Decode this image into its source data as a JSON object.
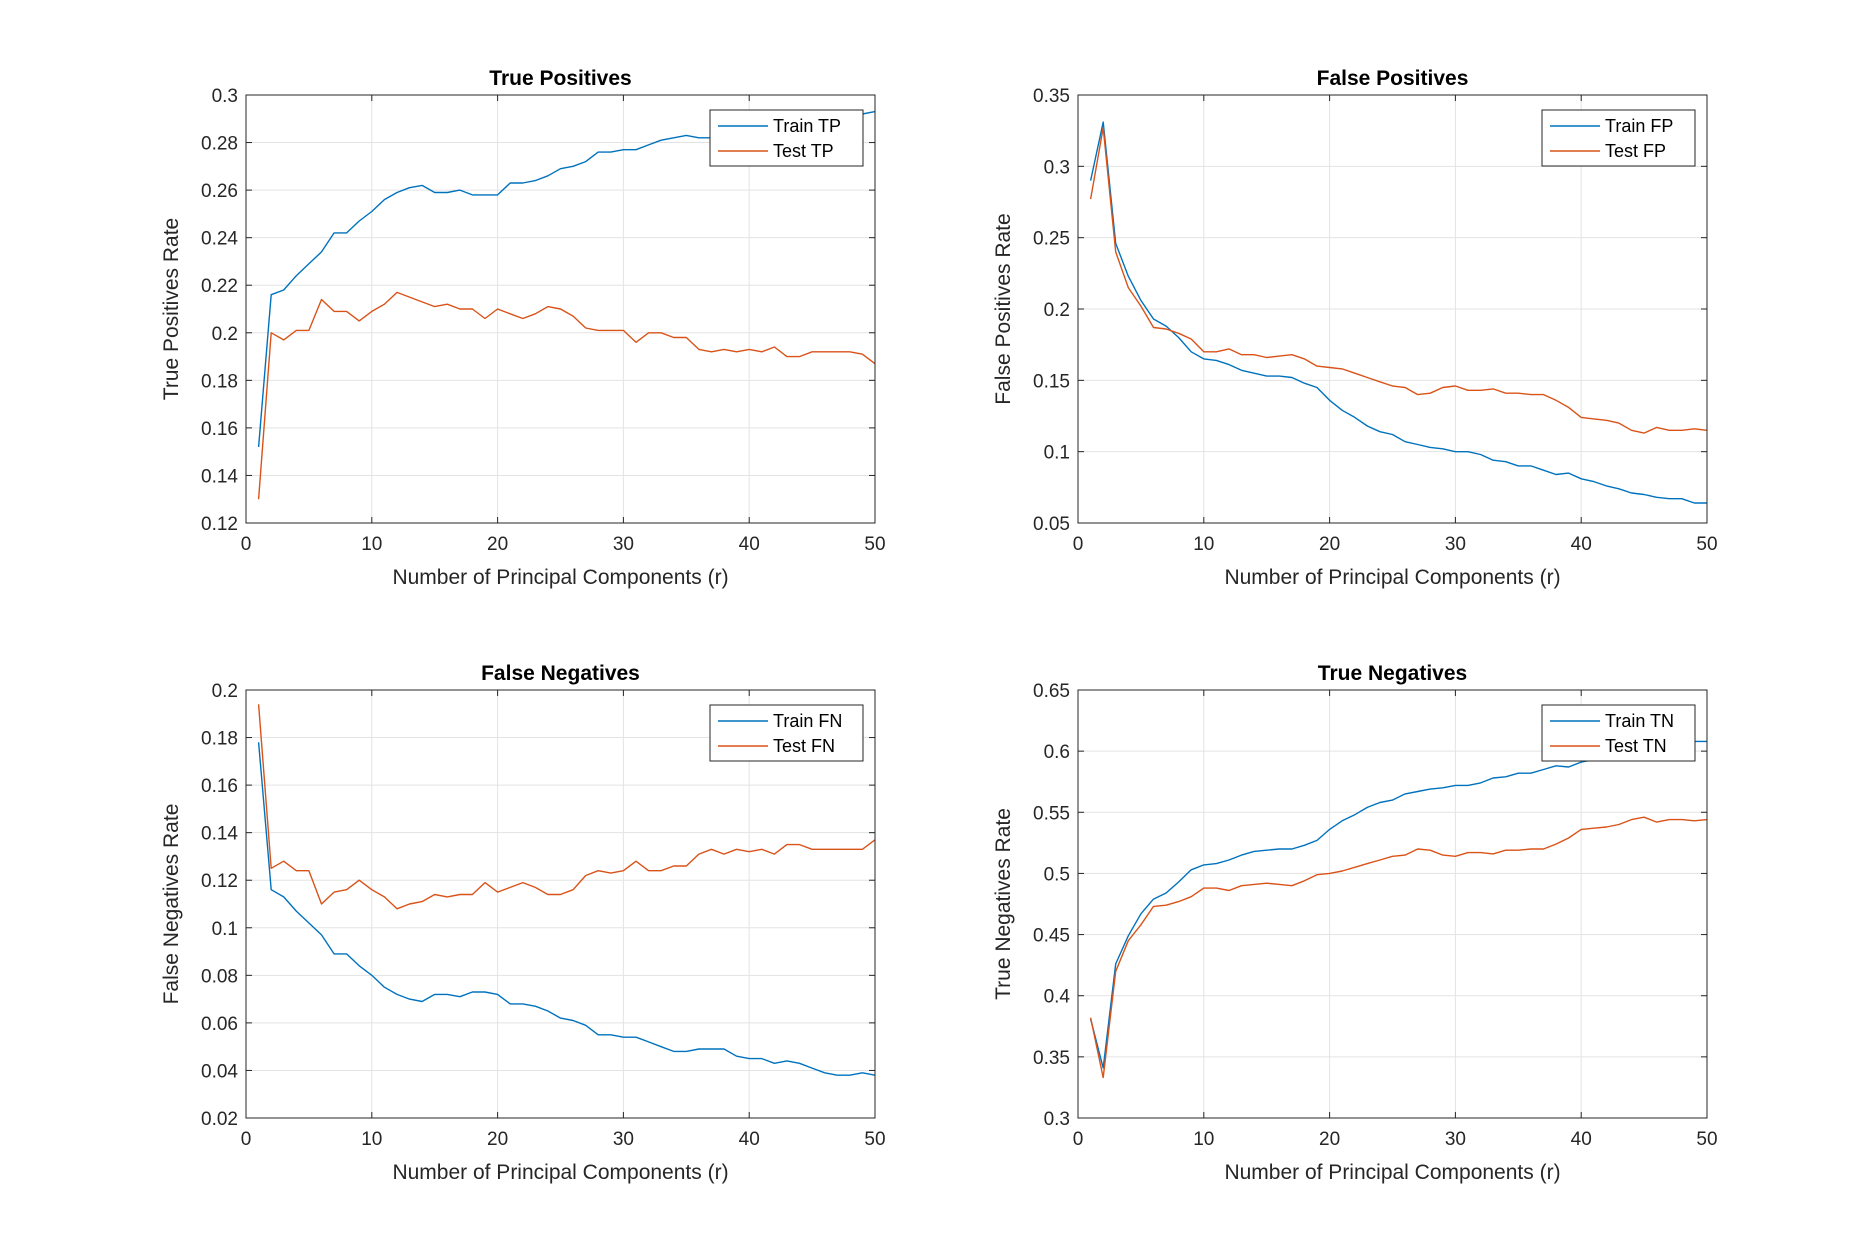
{
  "colors": {
    "train": "#0072bd",
    "test": "#d95319",
    "grid": "#e3e3e3",
    "axes": "#262626"
  },
  "chart_data": [
    {
      "type": "line",
      "title": "True Positives",
      "xlabel": "Number of Principal Components (r)",
      "ylabel": "True Positives Rate",
      "xlim": [
        0,
        50
      ],
      "ylim": [
        0.12,
        0.3
      ],
      "xticks": [
        "0",
        "10",
        "20",
        "30",
        "40",
        "50"
      ],
      "yticks": [
        "0.12",
        "0.14",
        "0.16",
        "0.18",
        "0.2",
        "0.22",
        "0.24",
        "0.26",
        "0.28",
        "0.3"
      ],
      "grid": true,
      "legend_position": "top-right",
      "x": [
        1,
        2,
        3,
        4,
        5,
        6,
        7,
        8,
        9,
        10,
        11,
        12,
        13,
        14,
        15,
        16,
        17,
        18,
        19,
        20,
        21,
        22,
        23,
        24,
        25,
        26,
        27,
        28,
        29,
        30,
        31,
        32,
        33,
        34,
        35,
        36,
        37,
        38,
        39,
        40,
        41,
        42,
        43,
        44,
        45,
        46,
        47,
        48,
        49,
        50
      ],
      "series": [
        {
          "name": "Train TP",
          "color_key": "train",
          "values": [
            0.152,
            0.216,
            0.218,
            0.224,
            0.229,
            0.234,
            0.242,
            0.242,
            0.247,
            0.251,
            0.256,
            0.259,
            0.261,
            0.262,
            0.259,
            0.259,
            0.26,
            0.258,
            0.258,
            0.258,
            0.263,
            0.263,
            0.264,
            0.266,
            0.269,
            0.27,
            0.272,
            0.276,
            0.276,
            0.277,
            0.277,
            0.279,
            0.281,
            0.282,
            0.283,
            0.282,
            0.282,
            0.284,
            0.285,
            0.286,
            0.287,
            0.288,
            0.288,
            0.289,
            0.29,
            0.291,
            0.291,
            0.292,
            0.292,
            0.293
          ]
        },
        {
          "name": "Test TP",
          "color_key": "test",
          "values": [
            0.13,
            0.2,
            0.197,
            0.201,
            0.201,
            0.214,
            0.209,
            0.209,
            0.205,
            0.209,
            0.212,
            0.217,
            0.215,
            0.213,
            0.211,
            0.212,
            0.21,
            0.21,
            0.206,
            0.21,
            0.208,
            0.206,
            0.208,
            0.211,
            0.21,
            0.207,
            0.202,
            0.201,
            0.201,
            0.201,
            0.196,
            0.2,
            0.2,
            0.198,
            0.198,
            0.193,
            0.192,
            0.193,
            0.192,
            0.193,
            0.192,
            0.194,
            0.19,
            0.19,
            0.192,
            0.192,
            0.192,
            0.192,
            0.191,
            0.187
          ]
        }
      ]
    },
    {
      "type": "line",
      "title": "False Positives",
      "xlabel": "Number of Principal Components (r)",
      "ylabel": "False Positives Rate",
      "xlim": [
        0,
        50
      ],
      "ylim": [
        0.05,
        0.35
      ],
      "xticks": [
        "0",
        "10",
        "20",
        "30",
        "40",
        "50"
      ],
      "yticks": [
        "0.05",
        "0.1",
        "0.15",
        "0.2",
        "0.25",
        "0.3",
        "0.35"
      ],
      "grid": true,
      "legend_position": "top-right",
      "x": [
        1,
        2,
        3,
        4,
        5,
        6,
        7,
        8,
        9,
        10,
        11,
        12,
        13,
        14,
        15,
        16,
        17,
        18,
        19,
        20,
        21,
        22,
        23,
        24,
        25,
        26,
        27,
        28,
        29,
        30,
        31,
        32,
        33,
        34,
        35,
        36,
        37,
        38,
        39,
        40,
        41,
        42,
        43,
        44,
        45,
        46,
        47,
        48,
        49,
        50
      ],
      "series": [
        {
          "name": "Train FP",
          "color_key": "train",
          "values": [
            0.29,
            0.331,
            0.246,
            0.223,
            0.206,
            0.193,
            0.188,
            0.18,
            0.17,
            0.165,
            0.164,
            0.161,
            0.157,
            0.155,
            0.153,
            0.153,
            0.152,
            0.148,
            0.145,
            0.136,
            0.129,
            0.124,
            0.118,
            0.114,
            0.112,
            0.107,
            0.105,
            0.103,
            0.102,
            0.1,
            0.1,
            0.098,
            0.094,
            0.093,
            0.09,
            0.09,
            0.087,
            0.084,
            0.085,
            0.081,
            0.079,
            0.076,
            0.074,
            0.071,
            0.07,
            0.068,
            0.067,
            0.067,
            0.064,
            0.064
          ]
        },
        {
          "name": "Test FP",
          "color_key": "test",
          "values": [
            0.277,
            0.327,
            0.24,
            0.215,
            0.202,
            0.187,
            0.186,
            0.183,
            0.179,
            0.17,
            0.17,
            0.172,
            0.168,
            0.168,
            0.166,
            0.167,
            0.168,
            0.165,
            0.16,
            0.159,
            0.158,
            0.155,
            0.152,
            0.149,
            0.146,
            0.145,
            0.14,
            0.141,
            0.145,
            0.146,
            0.143,
            0.143,
            0.144,
            0.141,
            0.141,
            0.14,
            0.14,
            0.136,
            0.131,
            0.124,
            0.123,
            0.122,
            0.12,
            0.115,
            0.113,
            0.117,
            0.115,
            0.115,
            0.116,
            0.115
          ]
        }
      ]
    },
    {
      "type": "line",
      "title": "False Negatives",
      "xlabel": "Number of Principal Components (r)",
      "ylabel": "False Negatives Rate",
      "xlim": [
        0,
        50
      ],
      "ylim": [
        0.02,
        0.2
      ],
      "xticks": [
        "0",
        "10",
        "20",
        "30",
        "40",
        "50"
      ],
      "yticks": [
        "0.02",
        "0.04",
        "0.06",
        "0.08",
        "0.1",
        "0.12",
        "0.14",
        "0.16",
        "0.18",
        "0.2"
      ],
      "grid": true,
      "legend_position": "top-right",
      "x": [
        1,
        2,
        3,
        4,
        5,
        6,
        7,
        8,
        9,
        10,
        11,
        12,
        13,
        14,
        15,
        16,
        17,
        18,
        19,
        20,
        21,
        22,
        23,
        24,
        25,
        26,
        27,
        28,
        29,
        30,
        31,
        32,
        33,
        34,
        35,
        36,
        37,
        38,
        39,
        40,
        41,
        42,
        43,
        44,
        45,
        46,
        47,
        48,
        49,
        50
      ],
      "series": [
        {
          "name": "Train FN",
          "color_key": "train",
          "values": [
            0.178,
            0.116,
            0.113,
            0.107,
            0.102,
            0.097,
            0.089,
            0.089,
            0.084,
            0.08,
            0.075,
            0.072,
            0.07,
            0.069,
            0.072,
            0.072,
            0.071,
            0.073,
            0.073,
            0.072,
            0.068,
            0.068,
            0.067,
            0.065,
            0.062,
            0.061,
            0.059,
            0.055,
            0.055,
            0.054,
            0.054,
            0.052,
            0.05,
            0.048,
            0.048,
            0.049,
            0.049,
            0.049,
            0.046,
            0.045,
            0.045,
            0.043,
            0.044,
            0.043,
            0.041,
            0.039,
            0.038,
            0.038,
            0.039,
            0.038
          ]
        },
        {
          "name": "Test FN",
          "color_key": "test",
          "values": [
            0.194,
            0.125,
            0.128,
            0.124,
            0.124,
            0.11,
            0.115,
            0.116,
            0.12,
            0.116,
            0.113,
            0.108,
            0.11,
            0.111,
            0.114,
            0.113,
            0.114,
            0.114,
            0.119,
            0.115,
            0.117,
            0.119,
            0.117,
            0.114,
            0.114,
            0.116,
            0.122,
            0.124,
            0.123,
            0.124,
            0.128,
            0.124,
            0.124,
            0.126,
            0.126,
            0.131,
            0.133,
            0.131,
            0.133,
            0.132,
            0.133,
            0.131,
            0.135,
            0.135,
            0.133,
            0.133,
            0.133,
            0.133,
            0.133,
            0.137
          ]
        }
      ]
    },
    {
      "type": "line",
      "title": "True Negatives",
      "xlabel": "Number of Principal Components (r)",
      "ylabel": "True Negatives Rate",
      "xlim": [
        0,
        50
      ],
      "ylim": [
        0.3,
        0.65
      ],
      "xticks": [
        "0",
        "10",
        "20",
        "30",
        "40",
        "50"
      ],
      "yticks": [
        "0.3",
        "0.35",
        "0.4",
        "0.45",
        "0.5",
        "0.55",
        "0.6",
        "0.65"
      ],
      "grid": true,
      "legend_position": "top-right",
      "x": [
        1,
        2,
        3,
        4,
        5,
        6,
        7,
        8,
        9,
        10,
        11,
        12,
        13,
        14,
        15,
        16,
        17,
        18,
        19,
        20,
        21,
        22,
        23,
        24,
        25,
        26,
        27,
        28,
        29,
        30,
        31,
        32,
        33,
        34,
        35,
        36,
        37,
        38,
        39,
        40,
        41,
        42,
        43,
        44,
        45,
        46,
        47,
        48,
        49,
        50
      ],
      "series": [
        {
          "name": "Train TN",
          "color_key": "train",
          "values": [
            0.381,
            0.341,
            0.426,
            0.449,
            0.467,
            0.479,
            0.484,
            0.493,
            0.503,
            0.507,
            0.508,
            0.511,
            0.515,
            0.518,
            0.519,
            0.52,
            0.52,
            0.523,
            0.527,
            0.536,
            0.543,
            0.548,
            0.554,
            0.558,
            0.56,
            0.565,
            0.567,
            0.569,
            0.57,
            0.572,
            0.572,
            0.574,
            0.578,
            0.579,
            0.582,
            0.582,
            0.585,
            0.588,
            0.587,
            0.591,
            0.593,
            0.596,
            0.598,
            0.601,
            0.602,
            0.604,
            0.605,
            0.605,
            0.608,
            0.608
          ]
        },
        {
          "name": "Test TN",
          "color_key": "test",
          "values": [
            0.382,
            0.333,
            0.42,
            0.445,
            0.458,
            0.473,
            0.474,
            0.477,
            0.481,
            0.488,
            0.488,
            0.486,
            0.49,
            0.491,
            0.492,
            0.491,
            0.49,
            0.494,
            0.499,
            0.5,
            0.502,
            0.505,
            0.508,
            0.511,
            0.514,
            0.515,
            0.52,
            0.519,
            0.515,
            0.514,
            0.517,
            0.517,
            0.516,
            0.519,
            0.519,
            0.52,
            0.52,
            0.524,
            0.529,
            0.536,
            0.537,
            0.538,
            0.54,
            0.544,
            0.546,
            0.542,
            0.544,
            0.544,
            0.543,
            0.544
          ]
        }
      ]
    }
  ]
}
